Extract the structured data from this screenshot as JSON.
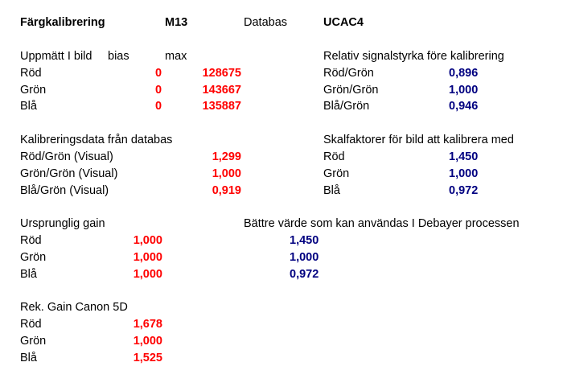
{
  "header": {
    "title": "Färgkalibrering",
    "object": "M13",
    "database_label": "Databas",
    "database_value": "UCAC4"
  },
  "measured": {
    "title": "Uppmätt I bild",
    "bias_label": "bias",
    "max_label": "max",
    "rows": [
      {
        "label": "Röd",
        "bias": "0",
        "max": "128675"
      },
      {
        "label": "Grön",
        "bias": "0",
        "max": "143667"
      },
      {
        "label": "Blå",
        "bias": "0",
        "max": "135887"
      }
    ]
  },
  "relative": {
    "title": "Relativ signalstyrka före kalibrering",
    "rows": [
      {
        "label": "Röd/Grön",
        "value": "0,896"
      },
      {
        "label": "Grön/Grön",
        "value": "1,000"
      },
      {
        "label": "Blå/Grön",
        "value": "0,946"
      }
    ]
  },
  "calib_db": {
    "title": "Kalibreringsdata från databas",
    "rows": [
      {
        "label": "Röd/Grön (Visual)",
        "value": "1,299"
      },
      {
        "label": "Grön/Grön (Visual)",
        "value": "1,000"
      },
      {
        "label": "Blå/Grön (Visual)",
        "value": "0,919"
      }
    ]
  },
  "scale": {
    "title": "Skalfaktorer för bild att kalibrera med",
    "rows": [
      {
        "label": "Röd",
        "value": "1,450"
      },
      {
        "label": "Grön",
        "value": "1,000"
      },
      {
        "label": "Blå",
        "value": "0,972"
      }
    ]
  },
  "original_gain": {
    "title": "Ursprunglig gain",
    "rows": [
      {
        "label": "Röd",
        "value": "1,000"
      },
      {
        "label": "Grön",
        "value": "1,000"
      },
      {
        "label": "Blå",
        "value": "1,000"
      }
    ]
  },
  "better": {
    "title": "Bättre värde som kan användas I Debayer processen",
    "values": [
      "1,450",
      "1,000",
      "0,972"
    ]
  },
  "rec_gain": {
    "title": "Rek. Gain Canon 5D",
    "rows": [
      {
        "label": "Röd",
        "value": "1,678"
      },
      {
        "label": "Grön",
        "value": "1,000"
      },
      {
        "label": "Blå",
        "value": "1,525"
      }
    ]
  },
  "colors": {
    "red": "#ff0000",
    "blue": "#000080",
    "text": "#000000"
  }
}
